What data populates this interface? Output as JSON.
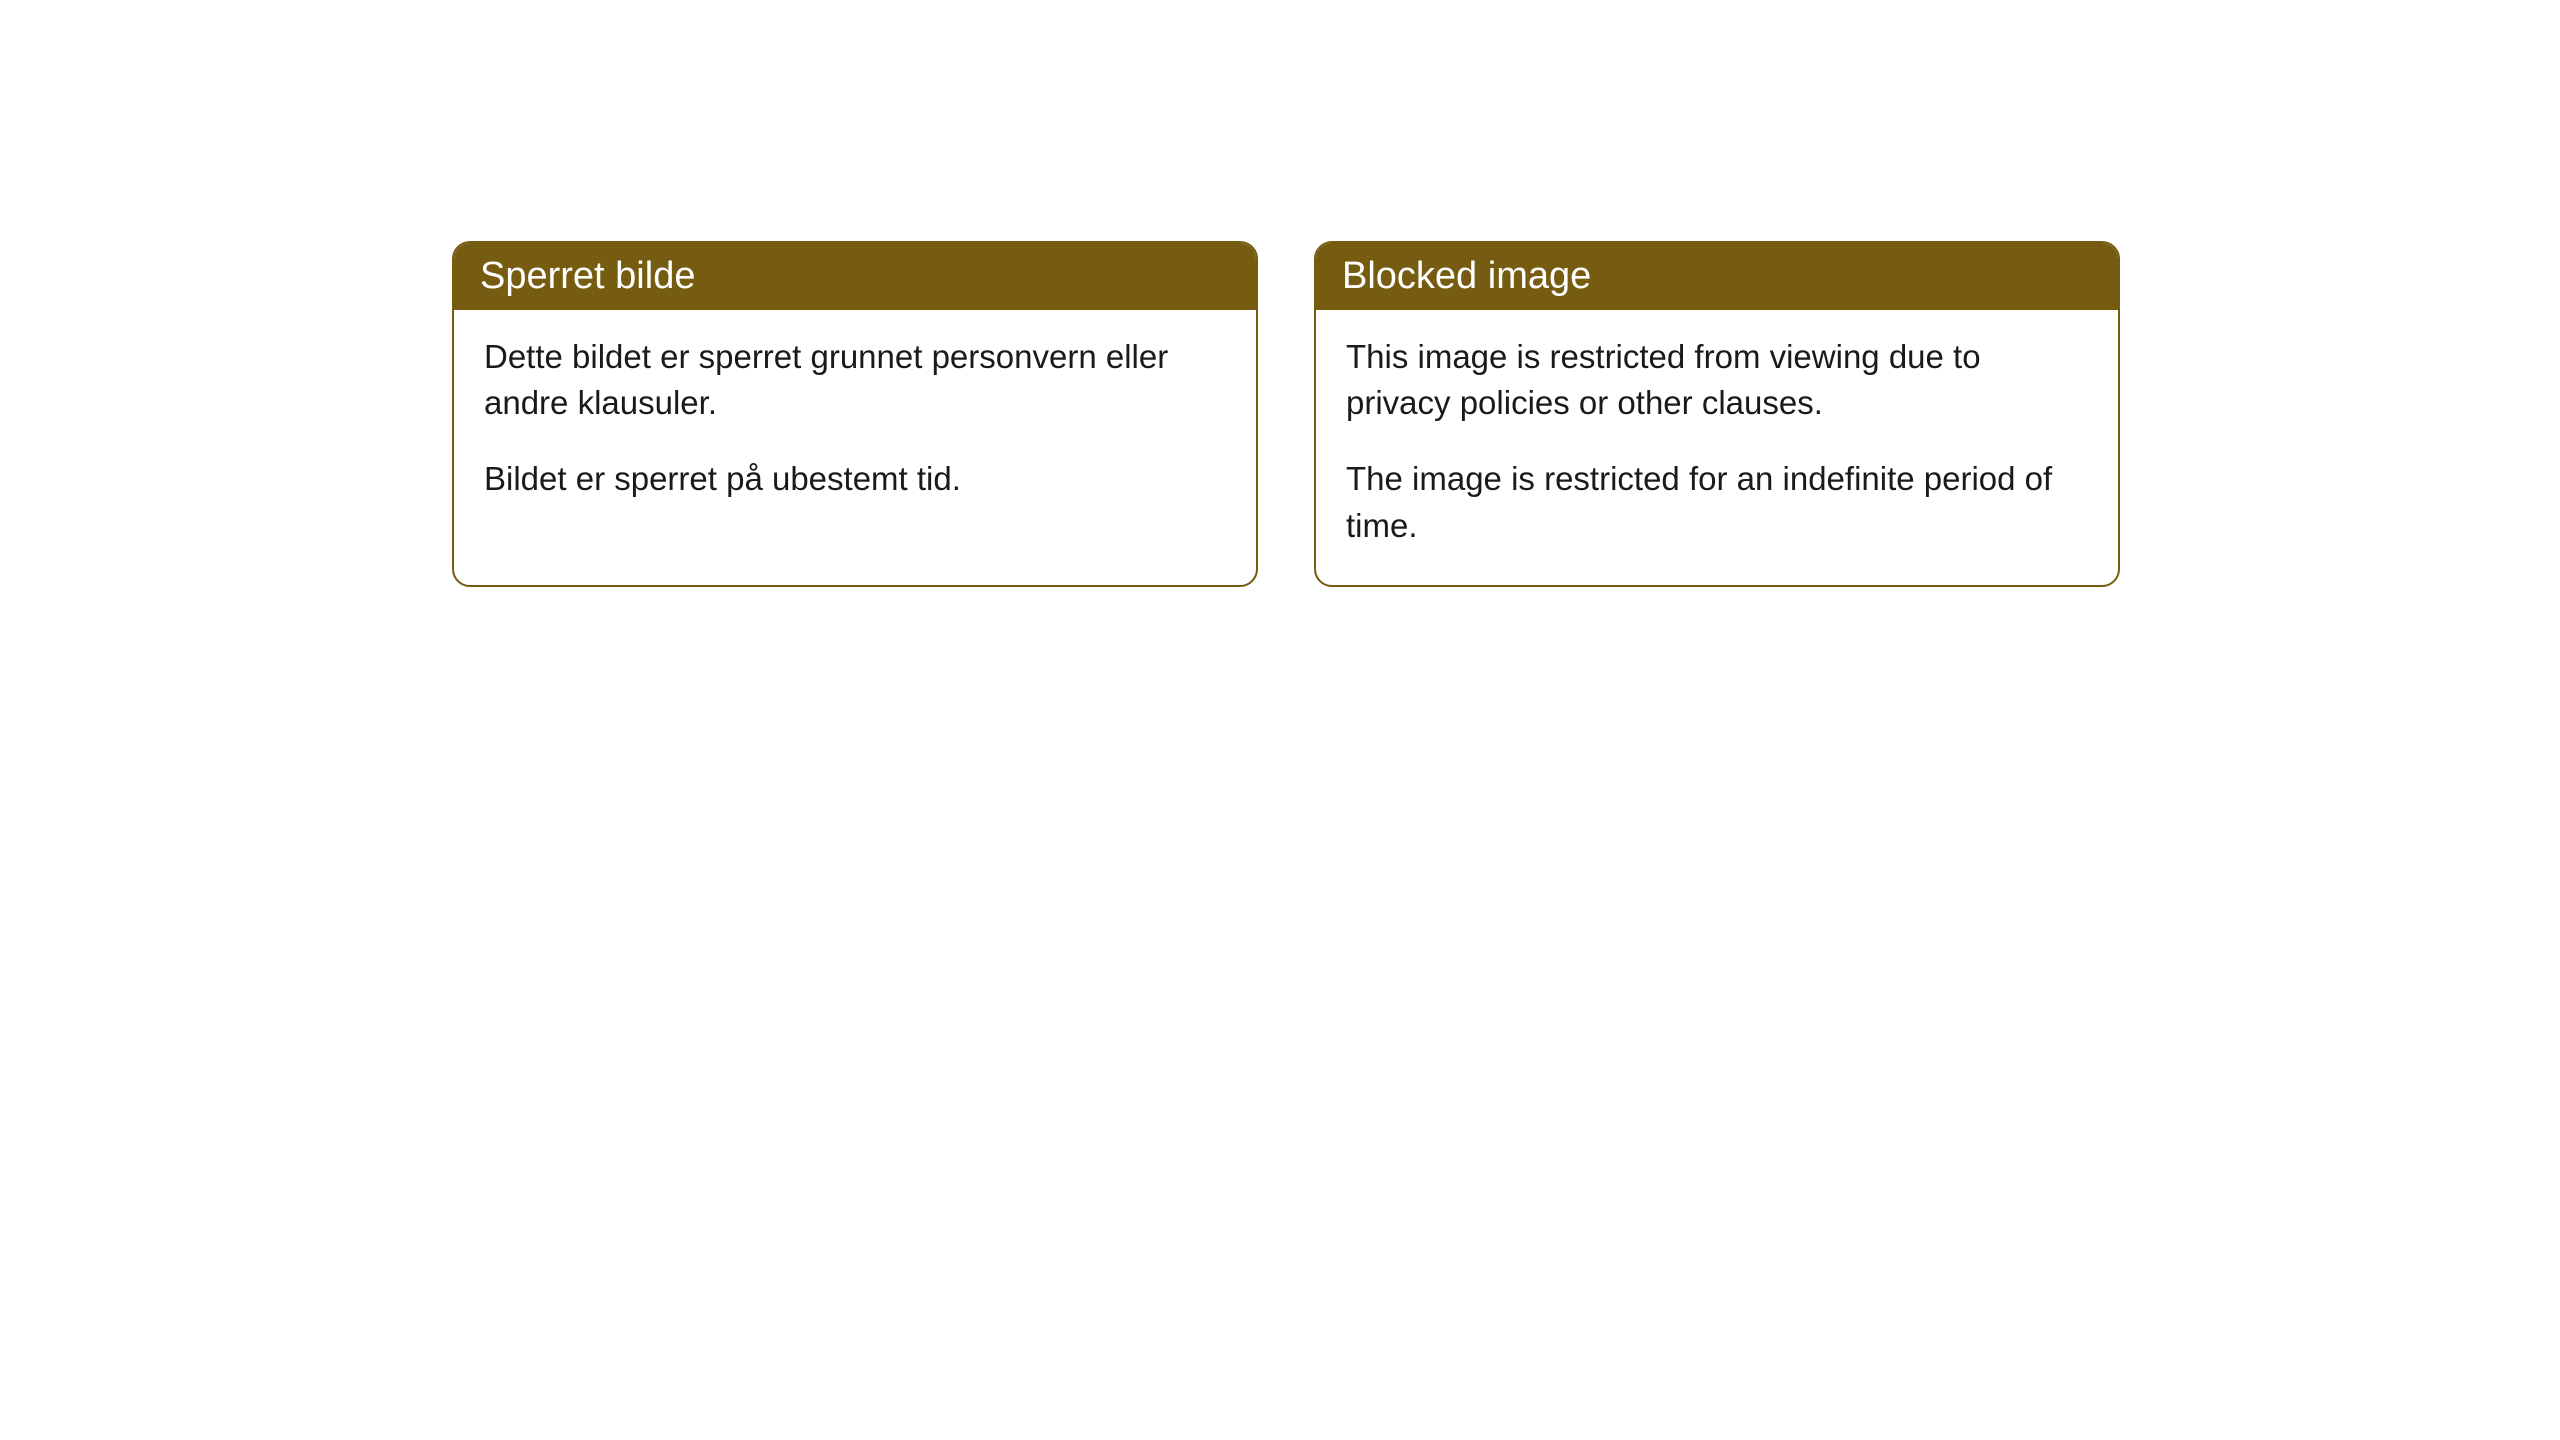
{
  "cards": [
    {
      "title": "Sperret bilde",
      "paragraph1": "Dette bildet er sperret grunnet personvern eller andre klausuler.",
      "paragraph2": "Bildet er sperret på ubestemt tid."
    },
    {
      "title": "Blocked image",
      "paragraph1": "This image is restricted from viewing due to privacy policies or other clauses.",
      "paragraph2": "The image is restricted for an indefinite period of time."
    }
  ],
  "styling": {
    "header_bg_color": "#765c10",
    "header_text_color": "#ffffff",
    "border_color": "#765c10",
    "body_bg_color": "#ffffff",
    "body_text_color": "#1a1a1a",
    "border_radius": 18,
    "header_fontsize": 38,
    "body_fontsize": 33
  }
}
